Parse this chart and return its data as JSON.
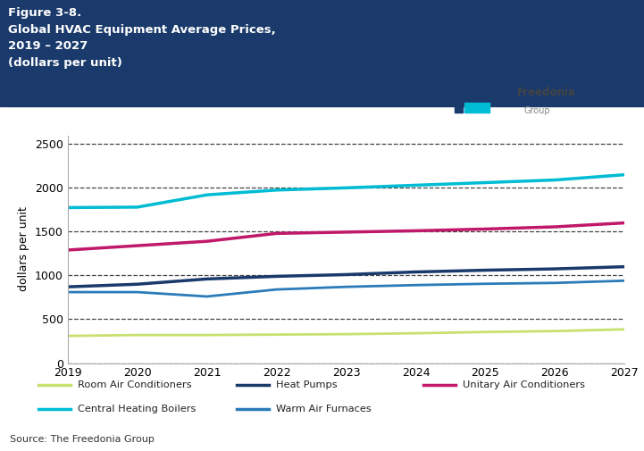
{
  "years": [
    2019,
    2020,
    2021,
    2022,
    2023,
    2024,
    2025,
    2026,
    2027
  ],
  "series": {
    "Room Air Conditioners": {
      "values": [
        310,
        320,
        320,
        325,
        330,
        340,
        355,
        365,
        385
      ],
      "color": "#c8e06e",
      "linewidth": 2.0
    },
    "Heat Pumps": {
      "values": [
        870,
        900,
        960,
        990,
        1010,
        1040,
        1060,
        1075,
        1100
      ],
      "color": "#1a3a6b",
      "linewidth": 2.5
    },
    "Unitary Air Conditioners": {
      "values": [
        1290,
        1340,
        1390,
        1480,
        1495,
        1510,
        1530,
        1555,
        1600
      ],
      "color": "#c0186a",
      "linewidth": 2.5
    },
    "Central Heating Boilers": {
      "values": [
        1775,
        1780,
        1920,
        1975,
        2000,
        2030,
        2060,
        2090,
        2150
      ],
      "color": "#00bcd4",
      "linewidth": 2.5
    },
    "Warm Air Furnaces": {
      "values": [
        810,
        810,
        760,
        840,
        870,
        890,
        905,
        915,
        940
      ],
      "color": "#2b7bb9",
      "linewidth": 2.0
    }
  },
  "ylim": [
    0,
    2600
  ],
  "yticks": [
    0,
    500,
    1000,
    1500,
    2000,
    2500
  ],
  "ylabel": "dollars per unit",
  "grid_color": "#222222",
  "header_bg": "#1a3a6b",
  "header_text_line1": "Figure 3-8.",
  "header_text_line2": "Global HVAC Equipment Average Prices,",
  "header_text_line3": "2019 – 2027",
  "header_text_line4": "(dollars per unit)",
  "header_text_color": "#ffffff",
  "source_text": "Source: The Freedonia Group",
  "freedonia_dark": "#1a3a6b",
  "freedonia_cyan": "#00bcd4",
  "bg_color": "#ffffff",
  "legend_items": [
    [
      "Room Air Conditioners",
      "#c8e06e"
    ],
    [
      "Heat Pumps",
      "#1a3a6b"
    ],
    [
      "Unitary Air Conditioners",
      "#c0186a"
    ],
    [
      "Central Heating Boilers",
      "#00bcd4"
    ],
    [
      "Warm Air Furnaces",
      "#2b7bb9"
    ]
  ]
}
